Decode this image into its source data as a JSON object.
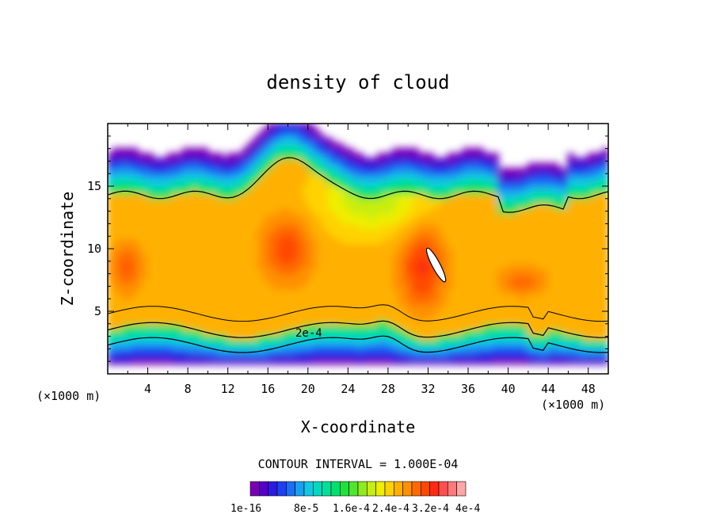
{
  "chart_data": {
    "type": "heatmap",
    "title": "density of cloud",
    "xlabel": "X-coordinate",
    "ylabel": "Z-coordinate",
    "x_unit": "(×1000 m)",
    "x_unit_right": "(×1000 m)",
    "xlim": [
      0,
      50
    ],
    "ylim": [
      0,
      20
    ],
    "xticks": [
      4,
      8,
      12,
      16,
      20,
      24,
      28,
      32,
      36,
      40,
      44,
      48
    ],
    "yticks": [
      5,
      10,
      15
    ],
    "contour_interval_text": "CONTOUR INTERVAL = 1.000E-04",
    "contour_label": "2e-4",
    "contour_levels": [
      0.0001,
      0.0002,
      0.0003,
      0.0004
    ],
    "colorbar": {
      "min": 1e-16,
      "max": 0.00044,
      "colors": [
        "#7a00b5",
        "#5500c8",
        "#2a1ae0",
        "#1f40f0",
        "#1c6ef5",
        "#1aa0f0",
        "#10c8e6",
        "#00d8c0",
        "#00e09a",
        "#00e070",
        "#20e040",
        "#50e630",
        "#90ea20",
        "#c8ee10",
        "#eeee00",
        "#ffd200",
        "#ffb000",
        "#ff9000",
        "#ff6a00",
        "#ff4800",
        "#ff2a10",
        "#ff4e4e",
        "#ff7a7a",
        "#ffa6a6"
      ],
      "labels": [
        "1e-16",
        "8e-5",
        "1.6e-4",
        "2.4e-4",
        "3.2e-4",
        "4e-4"
      ]
    }
  }
}
